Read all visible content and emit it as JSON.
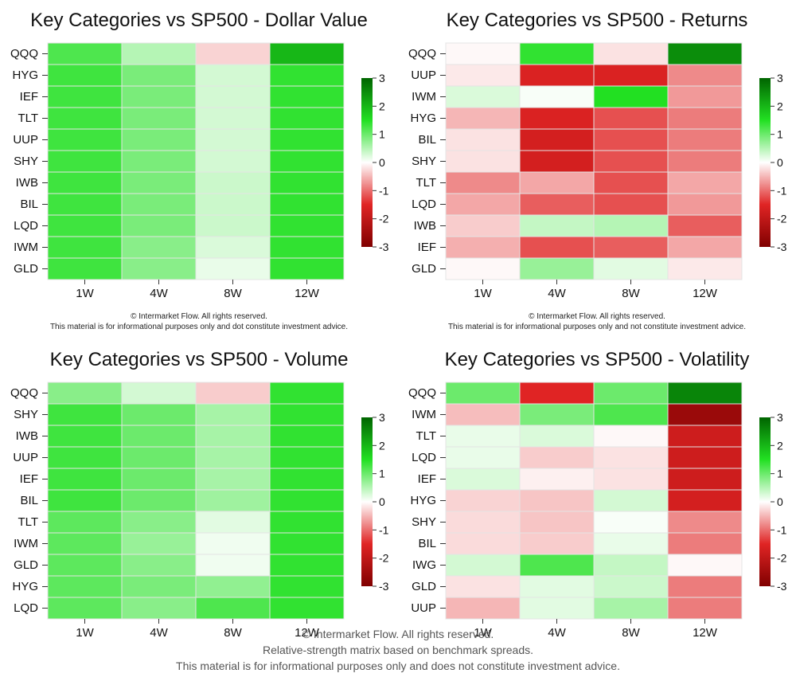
{
  "panels": [
    {
      "title": "Key Categories vs SP500 - Dollar Value",
      "note_copyright": "© Intermarket Flow. All rights reserved.",
      "note_disclaimer": "This material is for informational purposes only and dot constitute investment advice."
    },
    {
      "title": "Key Categories vs SP500 - Returns",
      "note_copyright": "© Intermarket Flow. All rights reserved.",
      "note_disclaimer": "This material is for informational purposes only and not constitute investment advice."
    },
    {
      "title": "Key Categories vs SP500 - Volume",
      "note_copyright": "",
      "note_disclaimer": ""
    },
    {
      "title": "Key Categories vs SP500 - Volatility",
      "note_copyright": "",
      "note_disclaimer": ""
    }
  ],
  "footer": {
    "copyright": "© Intermarket Flow. All rights reserved.",
    "subtitle": "Relative-strength matrix based on benchmark spreads.",
    "disclaimer": "This material is for informational purposes only and does not constitute investment advice."
  },
  "colors": {
    "strong_negative": "#800000",
    "negative": "#e02424",
    "neutral": "#ffffff",
    "positive": "#22e022",
    "strong_positive": "#006400"
  },
  "chart_data": [
    {
      "type": "heatmap",
      "title": "Key Categories vs SP500 - Dollar Value",
      "columns": [
        "1W",
        "4W",
        "8W",
        "12W"
      ],
      "rows": [
        "QQQ",
        "HYG",
        "IEF",
        "TLT",
        "UUP",
        "SHY",
        "IWB",
        "BIL",
        "LQD",
        "IWM",
        "GLD"
      ],
      "values": [
        [
          1.2,
          0.5,
          -0.3,
          2.0
        ],
        [
          1.3,
          0.9,
          0.3,
          1.4
        ],
        [
          1.3,
          0.9,
          0.3,
          1.4
        ],
        [
          1.3,
          0.9,
          0.3,
          1.4
        ],
        [
          1.3,
          0.9,
          0.3,
          1.4
        ],
        [
          1.3,
          0.9,
          0.3,
          1.4
        ],
        [
          1.3,
          0.9,
          0.35,
          1.4
        ],
        [
          1.3,
          0.9,
          0.35,
          1.4
        ],
        [
          1.3,
          0.9,
          0.35,
          1.4
        ],
        [
          1.3,
          0.8,
          0.25,
          1.4
        ],
        [
          1.3,
          0.8,
          0.15,
          1.4
        ]
      ],
      "colorbar": {
        "ticks": [
          3,
          2,
          1,
          0,
          -1,
          -2,
          -3
        ],
        "vmin": -3,
        "vmax": 3
      }
    },
    {
      "type": "heatmap",
      "title": "Key Categories vs SP500 - Returns",
      "columns": [
        "1W",
        "4W",
        "8W",
        "12W"
      ],
      "rows": [
        "QQQ",
        "UUP",
        "IWM",
        "HYG",
        "BIL",
        "SHY",
        "TLT",
        "LQD",
        "IWB",
        "IEF",
        "GLD"
      ],
      "values": [
        [
          -0.05,
          1.4,
          -0.2,
          2.5
        ],
        [
          -0.15,
          -1.6,
          -1.6,
          -0.8
        ],
        [
          0.25,
          0.05,
          1.5,
          -0.7
        ],
        [
          -0.5,
          -1.6,
          -1.2,
          -0.9
        ],
        [
          -0.2,
          -1.7,
          -1.2,
          -0.9
        ],
        [
          -0.2,
          -1.7,
          -1.2,
          -0.9
        ],
        [
          -0.8,
          -0.6,
          -1.2,
          -0.6
        ],
        [
          -0.6,
          -1.1,
          -1.2,
          -0.7
        ],
        [
          -0.35,
          0.4,
          0.5,
          -1.1
        ],
        [
          -0.55,
          -1.2,
          -1.1,
          -0.6
        ],
        [
          -0.05,
          0.7,
          0.2,
          -0.15
        ]
      ],
      "colorbar": {
        "ticks": [
          3,
          2,
          1,
          0,
          -1,
          -2,
          -3
        ],
        "vmin": -3,
        "vmax": 3
      }
    },
    {
      "type": "heatmap",
      "title": "Key Categories vs SP500 - Volume",
      "columns": [
        "1W",
        "4W",
        "8W",
        "12W"
      ],
      "rows": [
        "QQQ",
        "SHY",
        "IWB",
        "UUP",
        "IEF",
        "BIL",
        "TLT",
        "IWM",
        "GLD",
        "HYG",
        "LQD"
      ],
      "values": [
        [
          0.8,
          0.3,
          -0.35,
          1.4
        ],
        [
          1.3,
          1.0,
          0.6,
          1.4
        ],
        [
          1.3,
          1.0,
          0.6,
          1.4
        ],
        [
          1.3,
          1.0,
          0.6,
          1.4
        ],
        [
          1.3,
          1.0,
          0.6,
          1.4
        ],
        [
          1.3,
          1.0,
          0.65,
          1.4
        ],
        [
          1.1,
          0.8,
          0.2,
          1.4
        ],
        [
          1.1,
          0.7,
          0.1,
          1.4
        ],
        [
          1.1,
          0.8,
          0.1,
          1.4
        ],
        [
          1.1,
          0.9,
          0.75,
          1.4
        ],
        [
          1.1,
          0.8,
          1.2,
          1.4
        ]
      ],
      "colorbar": {
        "ticks": [
          3,
          2,
          1,
          0,
          -1,
          -2,
          -3
        ],
        "vmin": -3,
        "vmax": 3
      }
    },
    {
      "type": "heatmap",
      "title": "Key Categories vs SP500 - Volatility",
      "columns": [
        "1W",
        "4W",
        "8W",
        "12W"
      ],
      "rows": [
        "QQQ",
        "IWM",
        "TLT",
        "LQD",
        "IEF",
        "HYG",
        "SHY",
        "BIL",
        "IWG",
        "GLD",
        "UUP"
      ],
      "values": [
        [
          1.0,
          -1.5,
          1.0,
          2.6
        ],
        [
          -0.45,
          0.9,
          1.2,
          -2.6
        ],
        [
          0.15,
          0.25,
          -0.05,
          -1.8
        ],
        [
          0.15,
          -0.35,
          -0.2,
          -1.8
        ],
        [
          0.25,
          -0.1,
          -0.2,
          -1.8
        ],
        [
          -0.3,
          -0.4,
          0.3,
          -1.7
        ],
        [
          -0.25,
          -0.4,
          0.05,
          -0.8
        ],
        [
          -0.25,
          -0.35,
          0.15,
          -0.9
        ],
        [
          0.3,
          1.2,
          0.4,
          -0.05
        ],
        [
          -0.2,
          0.2,
          0.35,
          -0.9
        ],
        [
          -0.5,
          0.2,
          0.6,
          -0.9
        ]
      ],
      "colorbar": {
        "ticks": [
          3,
          2,
          1,
          0,
          -1,
          -2,
          -3
        ],
        "vmin": -3,
        "vmax": 3
      }
    }
  ]
}
